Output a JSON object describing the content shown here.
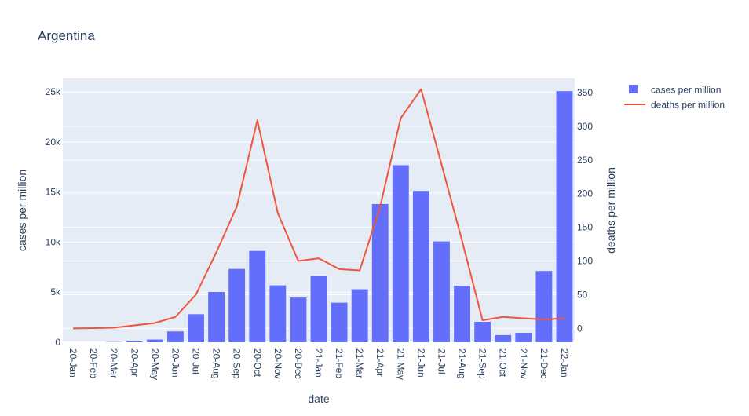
{
  "chart_data": {
    "type": "bar",
    "title": "Argentina",
    "xlabel": "date",
    "ylabel_left": "cases per million",
    "ylabel_right": "deaths per million",
    "categories": [
      "20-Jan",
      "20-Feb",
      "20-Mar",
      "20-Apr",
      "20-May",
      "20-Jun",
      "20-Jul",
      "20-Aug",
      "20-Sep",
      "20-Oct",
      "20-Nov",
      "20-Dec",
      "21-Jan",
      "21-Feb",
      "21-Mar",
      "21-Apr",
      "21-May",
      "21-Jun",
      "21-Jul",
      "21-Aug",
      "21-Sep",
      "21-Oct",
      "21-Nov",
      "21-Dec",
      "22-Jan"
    ],
    "left_axis": {
      "ylim": [
        0,
        26350
      ],
      "ticks": [
        0,
        5000,
        10000,
        15000,
        20000,
        25000
      ],
      "tick_labels": [
        "0",
        "5k",
        "10k",
        "15k",
        "20k",
        "25k"
      ]
    },
    "right_axis": {
      "ylim": [
        -20.6,
        371
      ],
      "ticks": [
        0,
        50,
        100,
        150,
        200,
        250,
        300,
        350
      ],
      "tick_labels": [
        "0",
        "50",
        "100",
        "150",
        "200",
        "250",
        "300",
        "350"
      ]
    },
    "series": [
      {
        "name": "cases per million",
        "type": "bar",
        "axis": "left",
        "color": "#636efa",
        "values": [
          0,
          0,
          23,
          95,
          270,
          1080,
          2800,
          5020,
          7320,
          9120,
          5680,
          4460,
          6620,
          3950,
          5290,
          13810,
          17690,
          15120,
          10070,
          5630,
          2040,
          710,
          940,
          7120,
          25080
        ]
      },
      {
        "name": "deaths per million",
        "type": "line",
        "axis": "right",
        "color": "#ef553b",
        "values": [
          0,
          0.4,
          0.9,
          4.5,
          8,
          17,
          50,
          113,
          181,
          309,
          171,
          100,
          104,
          88,
          86,
          181,
          312,
          355,
          243,
          130,
          12,
          17,
          15,
          13,
          15
        ]
      }
    ],
    "legend_position": "top-right",
    "grid": true
  }
}
